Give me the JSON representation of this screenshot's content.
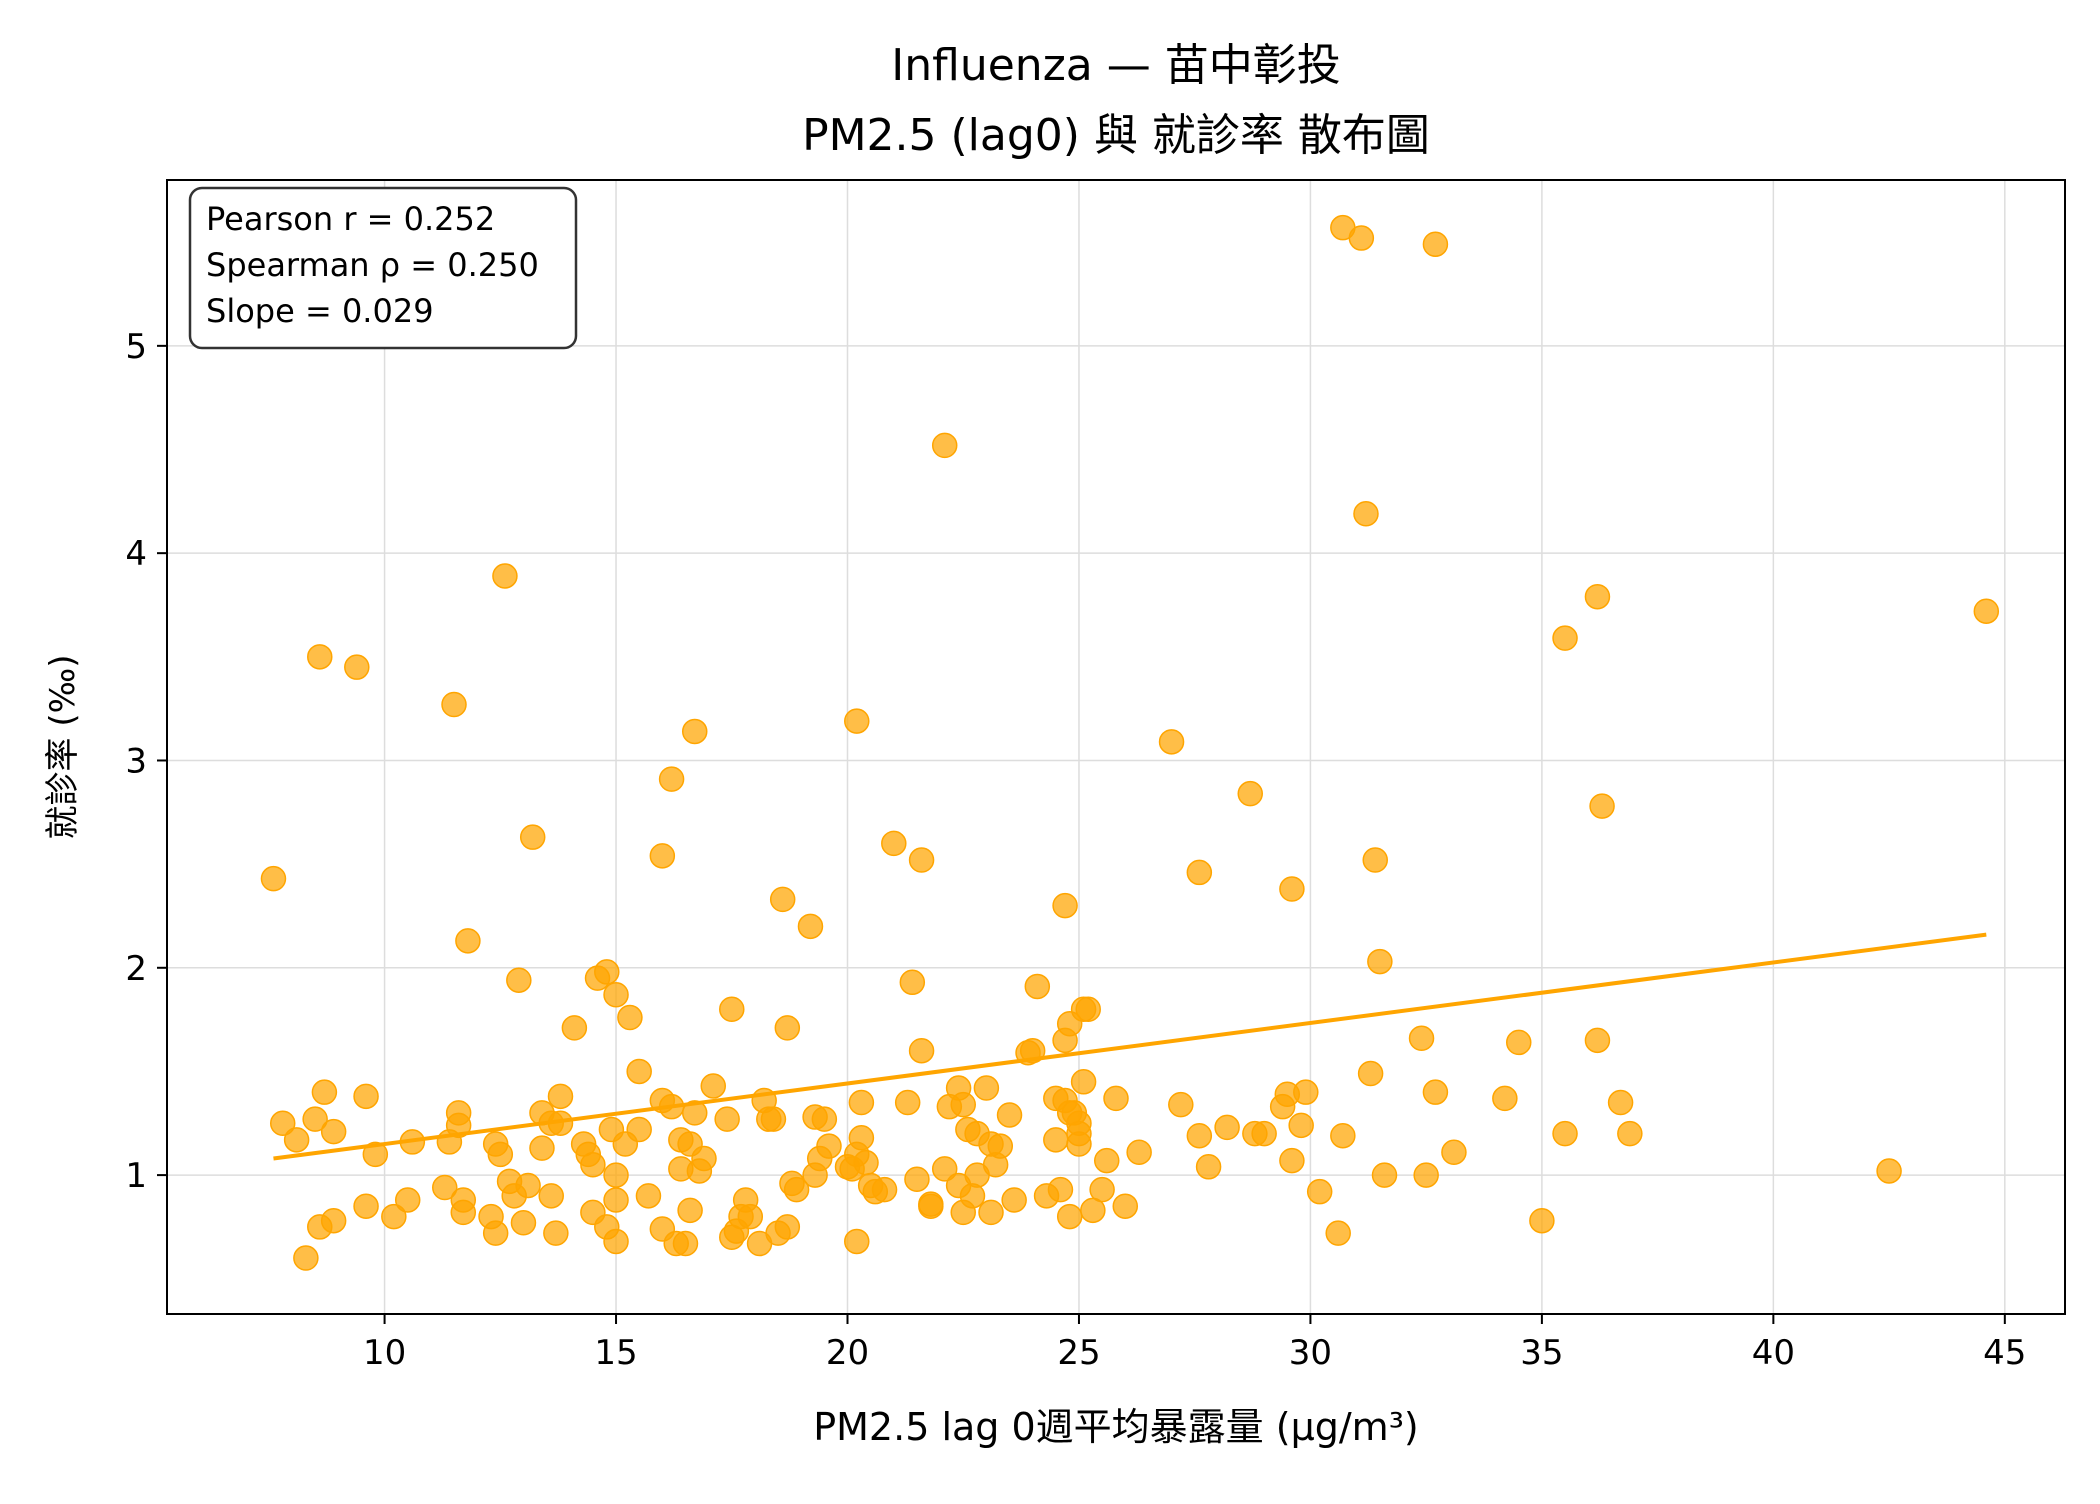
{
  "chart_data": {
    "type": "scatter",
    "title": [
      "Influenza — 苗中彰投",
      "PM2.5 (lag0) 與 就診率 散布圖"
    ],
    "xlabel": "PM2.5 lag 0週平均暴露量 (μg/m³)",
    "ylabel": "就診率 (‰)",
    "xlim": [
      5.3,
      46.3
    ],
    "ylim": [
      0.33,
      5.8
    ],
    "x_ticks": [
      10,
      15,
      20,
      25,
      30,
      35,
      40,
      45
    ],
    "y_ticks": [
      1,
      2,
      3,
      4,
      5
    ],
    "grid": true,
    "stats_box": [
      "Pearson r = 0.252",
      "Spearman ρ = 0.250",
      "Slope = 0.029"
    ],
    "point_color": "#FFA500",
    "trend_line": {
      "x": [
        7.6,
        44.6
      ],
      "y": [
        1.08,
        2.16
      ],
      "color": "#FFA500"
    },
    "points": [
      [
        7.6,
        2.43
      ],
      [
        7.8,
        1.25
      ],
      [
        8.1,
        1.17
      ],
      [
        8.3,
        0.6
      ],
      [
        8.5,
        1.27
      ],
      [
        8.6,
        3.5
      ],
      [
        8.6,
        0.75
      ],
      [
        8.7,
        1.4
      ],
      [
        8.9,
        0.78
      ],
      [
        8.9,
        1.21
      ],
      [
        9.4,
        3.45
      ],
      [
        9.6,
        1.38
      ],
      [
        9.6,
        0.85
      ],
      [
        9.8,
        1.1
      ],
      [
        10.2,
        0.8
      ],
      [
        10.5,
        0.88
      ],
      [
        10.6,
        1.16
      ],
      [
        11.3,
        0.94
      ],
      [
        11.4,
        1.16
      ],
      [
        11.5,
        3.27
      ],
      [
        11.6,
        1.3
      ],
      [
        11.6,
        1.24
      ],
      [
        11.7,
        0.88
      ],
      [
        11.7,
        0.82
      ],
      [
        11.8,
        2.13
      ],
      [
        12.3,
        0.8
      ],
      [
        12.4,
        0.72
      ],
      [
        12.4,
        1.15
      ],
      [
        12.5,
        1.1
      ],
      [
        12.6,
        3.89
      ],
      [
        12.7,
        0.97
      ],
      [
        12.8,
        0.9
      ],
      [
        12.9,
        1.94
      ],
      [
        13.0,
        0.77
      ],
      [
        13.1,
        0.95
      ],
      [
        13.2,
        2.63
      ],
      [
        13.4,
        1.13
      ],
      [
        13.4,
        1.3
      ],
      [
        13.6,
        0.9
      ],
      [
        13.6,
        1.25
      ],
      [
        13.7,
        0.72
      ],
      [
        13.8,
        1.38
      ],
      [
        13.8,
        1.25
      ],
      [
        14.1,
        1.71
      ],
      [
        14.3,
        1.15
      ],
      [
        14.4,
        1.1
      ],
      [
        14.5,
        1.05
      ],
      [
        14.5,
        0.82
      ],
      [
        14.6,
        1.95
      ],
      [
        14.8,
        1.98
      ],
      [
        14.8,
        0.75
      ],
      [
        14.9,
        1.22
      ],
      [
        15.0,
        1.87
      ],
      [
        15.0,
        0.88
      ],
      [
        15.0,
        1.0
      ],
      [
        15.0,
        0.68
      ],
      [
        15.2,
        1.15
      ],
      [
        15.3,
        1.76
      ],
      [
        15.5,
        1.5
      ],
      [
        15.5,
        1.22
      ],
      [
        15.7,
        0.9
      ],
      [
        16.0,
        2.54
      ],
      [
        16.0,
        1.36
      ],
      [
        16.0,
        0.74
      ],
      [
        16.2,
        2.91
      ],
      [
        16.2,
        1.33
      ],
      [
        16.3,
        0.67
      ],
      [
        16.4,
        1.17
      ],
      [
        16.4,
        1.03
      ],
      [
        16.5,
        0.67
      ],
      [
        16.6,
        1.15
      ],
      [
        16.6,
        0.83
      ],
      [
        16.7,
        3.14
      ],
      [
        16.7,
        1.3
      ],
      [
        16.8,
        1.02
      ],
      [
        16.9,
        1.08
      ],
      [
        17.1,
        1.43
      ],
      [
        17.4,
        1.27
      ],
      [
        17.5,
        1.8
      ],
      [
        17.5,
        0.7
      ],
      [
        17.6,
        0.73
      ],
      [
        17.7,
        0.8
      ],
      [
        17.8,
        0.88
      ],
      [
        17.9,
        0.8
      ],
      [
        18.1,
        0.67
      ],
      [
        18.2,
        1.36
      ],
      [
        18.3,
        1.27
      ],
      [
        18.4,
        1.27
      ],
      [
        18.5,
        0.72
      ],
      [
        18.6,
        2.33
      ],
      [
        18.7,
        1.71
      ],
      [
        18.7,
        0.75
      ],
      [
        18.8,
        0.96
      ],
      [
        18.9,
        0.93
      ],
      [
        19.2,
        2.2
      ],
      [
        19.3,
        1.28
      ],
      [
        19.3,
        1.0
      ],
      [
        19.4,
        1.08
      ],
      [
        19.5,
        1.27
      ],
      [
        19.6,
        1.14
      ],
      [
        20.0,
        1.04
      ],
      [
        20.1,
        1.03
      ],
      [
        20.2,
        0.68
      ],
      [
        20.2,
        1.1
      ],
      [
        20.2,
        3.19
      ],
      [
        20.3,
        1.35
      ],
      [
        20.3,
        1.18
      ],
      [
        20.4,
        1.06
      ],
      [
        20.5,
        0.95
      ],
      [
        20.6,
        0.92
      ],
      [
        20.8,
        0.93
      ],
      [
        21.0,
        2.6
      ],
      [
        21.3,
        1.35
      ],
      [
        21.4,
        1.93
      ],
      [
        21.5,
        0.98
      ],
      [
        21.6,
        2.52
      ],
      [
        21.6,
        1.6
      ],
      [
        21.8,
        0.85
      ],
      [
        21.8,
        0.86
      ],
      [
        22.1,
        4.52
      ],
      [
        22.1,
        1.03
      ],
      [
        22.2,
        1.33
      ],
      [
        22.4,
        1.42
      ],
      [
        22.4,
        0.95
      ],
      [
        22.5,
        0.82
      ],
      [
        22.5,
        1.34
      ],
      [
        22.6,
        1.22
      ],
      [
        22.7,
        0.9
      ],
      [
        22.8,
        1.2
      ],
      [
        22.8,
        1.0
      ],
      [
        23.0,
        1.42
      ],
      [
        23.1,
        1.15
      ],
      [
        23.1,
        0.82
      ],
      [
        23.2,
        1.05
      ],
      [
        23.3,
        1.14
      ],
      [
        23.5,
        1.29
      ],
      [
        23.6,
        0.88
      ],
      [
        23.9,
        1.59
      ],
      [
        24.0,
        1.6
      ],
      [
        24.1,
        1.91
      ],
      [
        24.3,
        0.9
      ],
      [
        24.5,
        1.17
      ],
      [
        24.5,
        1.37
      ],
      [
        24.6,
        0.93
      ],
      [
        24.7,
        2.3
      ],
      [
        24.7,
        1.65
      ],
      [
        24.7,
        1.36
      ],
      [
        24.8,
        1.73
      ],
      [
        24.8,
        1.3
      ],
      [
        24.8,
        0.8
      ],
      [
        24.9,
        1.3
      ],
      [
        25.0,
        1.25
      ],
      [
        25.0,
        1.2
      ],
      [
        25.0,
        1.15
      ],
      [
        25.1,
        1.8
      ],
      [
        25.1,
        1.45
      ],
      [
        25.2,
        1.8
      ],
      [
        25.3,
        0.83
      ],
      [
        25.5,
        0.93
      ],
      [
        25.6,
        1.07
      ],
      [
        25.8,
        1.37
      ],
      [
        26.0,
        0.85
      ],
      [
        26.3,
        1.11
      ],
      [
        27.0,
        3.09
      ],
      [
        27.2,
        1.34
      ],
      [
        27.6,
        2.46
      ],
      [
        27.6,
        1.19
      ],
      [
        27.8,
        1.04
      ],
      [
        28.2,
        1.23
      ],
      [
        28.7,
        2.84
      ],
      [
        28.8,
        1.2
      ],
      [
        29.0,
        1.2
      ],
      [
        29.4,
        1.33
      ],
      [
        29.5,
        1.39
      ],
      [
        29.6,
        2.38
      ],
      [
        29.6,
        1.07
      ],
      [
        29.8,
        1.24
      ],
      [
        29.9,
        1.4
      ],
      [
        30.2,
        0.92
      ],
      [
        30.6,
        0.72
      ],
      [
        30.7,
        5.57
      ],
      [
        30.7,
        1.19
      ],
      [
        31.1,
        5.52
      ],
      [
        31.2,
        4.19
      ],
      [
        31.3,
        1.49
      ],
      [
        31.4,
        2.52
      ],
      [
        31.5,
        2.03
      ],
      [
        31.6,
        1.0
      ],
      [
        32.4,
        1.66
      ],
      [
        32.5,
        1.0
      ],
      [
        32.7,
        5.49
      ],
      [
        32.7,
        1.4
      ],
      [
        33.1,
        1.11
      ],
      [
        34.2,
        1.37
      ],
      [
        34.5,
        1.64
      ],
      [
        35.0,
        0.78
      ],
      [
        35.5,
        3.59
      ],
      [
        35.5,
        1.2
      ],
      [
        36.2,
        3.79
      ],
      [
        36.2,
        1.65
      ],
      [
        36.3,
        2.78
      ],
      [
        36.7,
        1.35
      ],
      [
        36.9,
        1.2
      ],
      [
        42.5,
        1.02
      ],
      [
        44.6,
        3.72
      ]
    ]
  }
}
